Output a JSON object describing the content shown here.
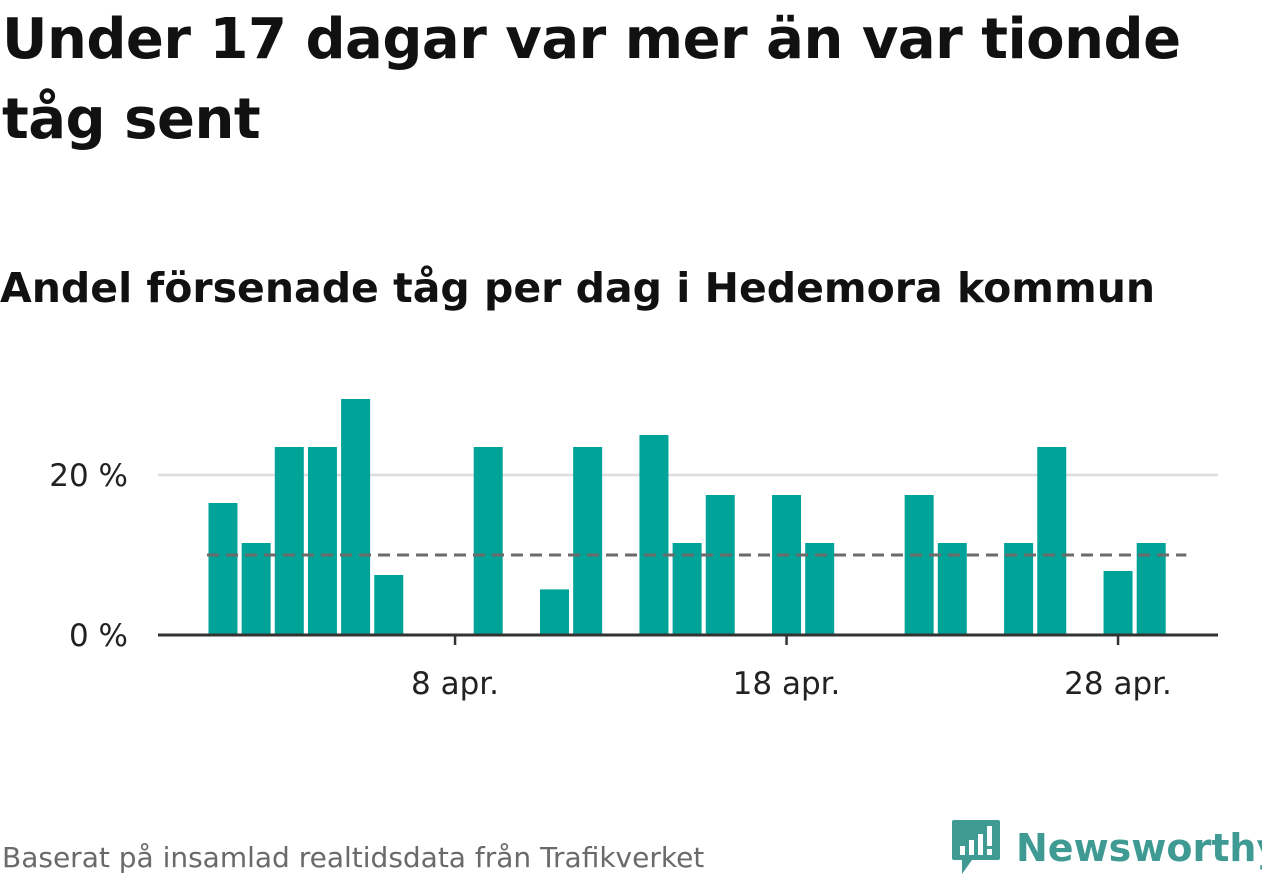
{
  "title": "Under 17 dagar var mer än var tionde tåg sent",
  "subtitle": "Andel försenade tåg per dag i Hedemora kommun",
  "source": "Baserat på insamlad realtidsdata från Trafikverket",
  "logo": {
    "text": "Newsworthy",
    "icon": "newsworthy-chart-bubble-icon"
  },
  "colors": {
    "bar": "#00a398",
    "reference_line": "#6b6b6b",
    "grid": "#dddddd",
    "axis": "#333333",
    "logo": "#3e9a93"
  },
  "chart_data": {
    "type": "bar",
    "x": [
      "1 apr.",
      "2 apr.",
      "3 apr.",
      "4 apr.",
      "5 apr.",
      "6 apr.",
      "7 apr.",
      "8 apr.",
      "9 apr.",
      "10 apr.",
      "11 apr.",
      "12 apr.",
      "13 apr.",
      "14 apr.",
      "15 apr.",
      "16 apr.",
      "17 apr.",
      "18 apr.",
      "19 apr.",
      "20 apr.",
      "21 apr.",
      "22 apr.",
      "23 apr.",
      "24 apr.",
      "25 apr.",
      "26 apr.",
      "27 apr.",
      "28 apr.",
      "29 apr.",
      "30 apr."
    ],
    "values": [
      16.5,
      11.5,
      23.5,
      23.5,
      29.5,
      7.5,
      0,
      0,
      23.5,
      0,
      5.7,
      23.5,
      0,
      25,
      11.5,
      17.5,
      0,
      17.5,
      11.5,
      0,
      0,
      17.5,
      11.5,
      0,
      11.5,
      23.5,
      0,
      8,
      11.5,
      0
    ],
    "reference_line": 10,
    "ylim": [
      0,
      33
    ],
    "yticks": [
      {
        "value": 0,
        "label": "0 %"
      },
      {
        "value": 20,
        "label": "20 %"
      }
    ],
    "xticks": [
      {
        "index": 7,
        "label": "8 apr."
      },
      {
        "index": 17,
        "label": "18 apr."
      },
      {
        "index": 27,
        "label": "28 apr."
      }
    ],
    "grid": true,
    "legend": "none"
  }
}
